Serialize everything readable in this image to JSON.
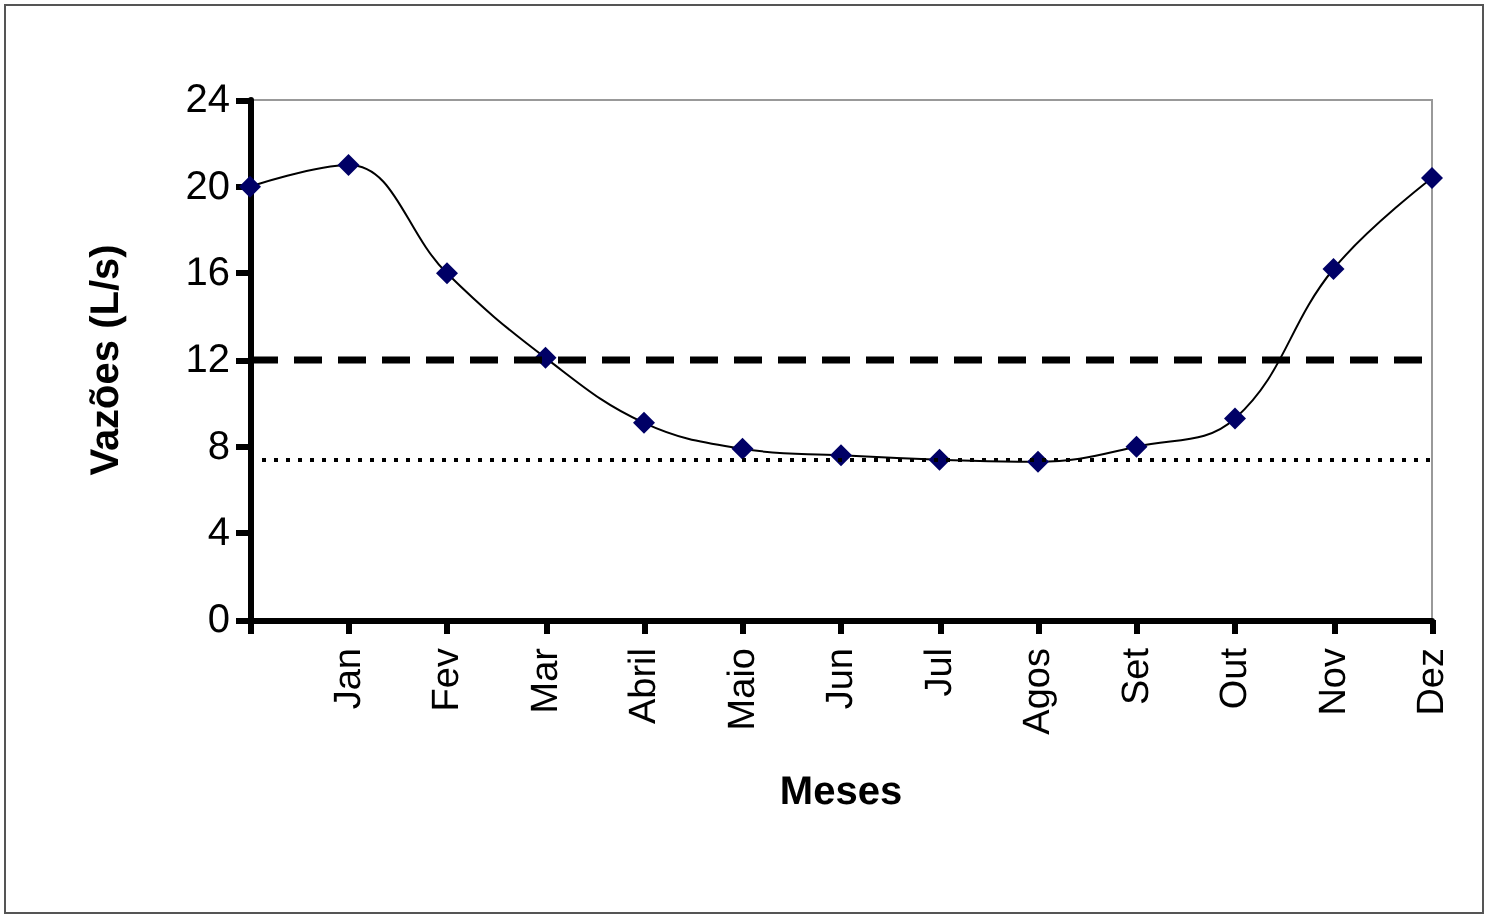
{
  "chart_data": {
    "type": "line",
    "xlabel": "Meses",
    "ylabel": "Vazões (L/s)",
    "categories": [
      null,
      "Jan",
      "Fev",
      "Mar",
      "Abril",
      "Maio",
      "Jun",
      "Jul",
      "Agos",
      "Set",
      "Out",
      "Nov",
      "Dez"
    ],
    "series": [
      {
        "color": "#000066",
        "values": [
          20.0,
          21.0,
          16.0,
          12.1,
          9.1,
          7.9,
          7.6,
          7.4,
          7.3,
          8.0,
          9.3,
          16.2,
          20.4
        ]
      }
    ],
    "ylim": [
      0,
      24
    ],
    "yticks": [
      0,
      4,
      8,
      12,
      16,
      20,
      24
    ],
    "grid": false,
    "marker": "diamond",
    "line_style": "solid",
    "ref_lines": [
      {
        "axis": "y",
        "value": 12,
        "color": "#000000",
        "line_style": "dashed"
      },
      {
        "axis": "y",
        "value": 7.4,
        "color": "#000000",
        "line_style": "dotted"
      }
    ]
  }
}
